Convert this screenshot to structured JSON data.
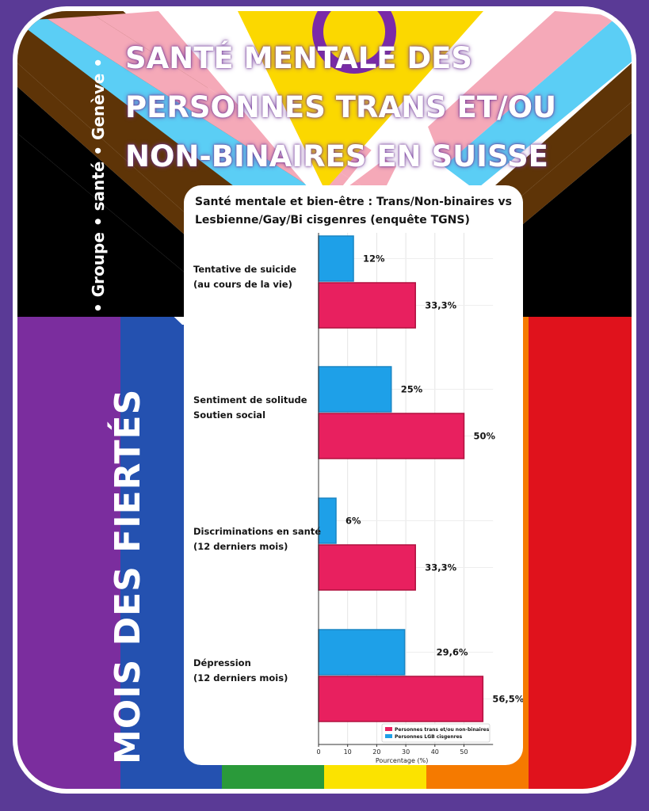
{
  "poster": {
    "headline": [
      "SANTÉ MENTALE DES",
      "PERSONNES TRANS ET/OU",
      "NON-BINAIRES  EN SUISSE"
    ],
    "vertical_title": "MOIS DES FIERTÉS",
    "vertical_subtitle": "• Groupe • santé • Genève •"
  },
  "colors": {
    "frame": "#5a3a96",
    "lgb_series": "#1ea0e8",
    "trans_series": "#e8205f"
  },
  "chart_data": {
    "type": "bar",
    "orientation": "horizontal",
    "title": "Santé mentale et bien-être : Trans/Non-binaires vs Lesbienne/Gay/Bi cisgenres (enquête TGNS)",
    "categories": [
      [
        "Tentative de suicide",
        "(au cours de la vie)"
      ],
      [
        "Sentiment de solitude",
        "Soutien social"
      ],
      [
        "Discriminations en santé",
        "(12 derniers mois)"
      ],
      [
        "Dépression",
        "(12 derniers mois)"
      ]
    ],
    "series": [
      {
        "name": "Personnes LGB cisgenres",
        "values": [
          12,
          25,
          6,
          29.6
        ],
        "labels": [
          "12%",
          "25%",
          "6%",
          "29,6%"
        ]
      },
      {
        "name": "Personnes trans et/ou non-binaires",
        "values": [
          33.3,
          50,
          33.3,
          56.5
        ],
        "labels": [
          "33,3%",
          "50%",
          "33,3%",
          "56,5%"
        ]
      }
    ],
    "xlabel": "Pourcentage (%)",
    "ylabel": "",
    "xticks": [
      0,
      10,
      20,
      30,
      40,
      50
    ],
    "xlim": [
      0,
      60
    ],
    "legend_entries": [
      "Personnes trans et/ou non-binaires",
      "Personnes LGB cisgenres"
    ],
    "legend": "bottom-right",
    "grid": true
  }
}
